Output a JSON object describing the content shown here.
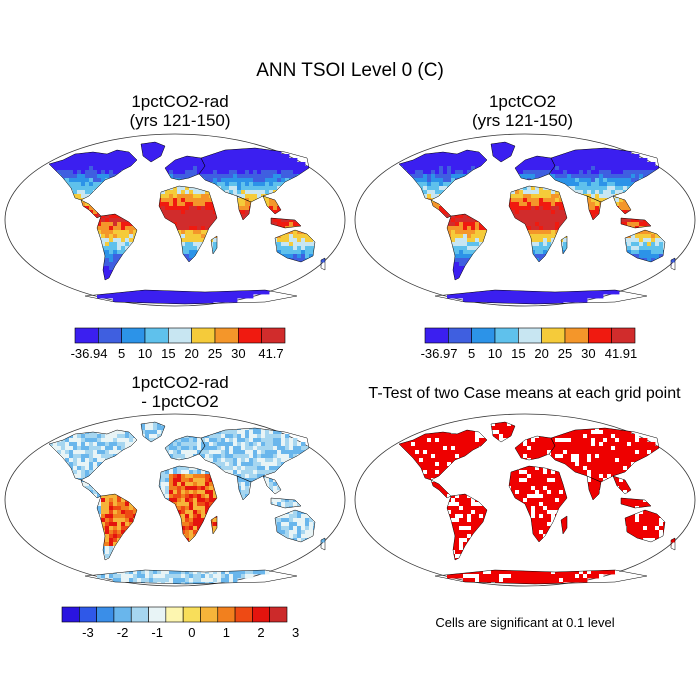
{
  "title": "ANN TSOI Level 0 (C)",
  "panels": [
    {
      "id": "p1",
      "title_line1": "1pctCO2-rad",
      "title_line2": "(yrs 121-150)",
      "colorbar": {
        "labels": [
          "-36.94",
          "5",
          "10",
          "15",
          "20",
          "25",
          "30",
          "41.7"
        ],
        "colors": [
          "#3b1ff0",
          "#3f5fe0",
          "#2c93e8",
          "#5fc1ec",
          "#c8e6f2",
          "#f5cb3a",
          "#f4962a",
          "#f01a10",
          "#d12c2c"
        ]
      }
    },
    {
      "id": "p2",
      "title_line1": "1pctCO2",
      "title_line2": "(yrs 121-150)",
      "colorbar": {
        "labels": [
          "-36.97",
          "5",
          "10",
          "15",
          "20",
          "25",
          "30",
          "41.91"
        ],
        "colors": [
          "#3b1ff0",
          "#3f5fe0",
          "#2c93e8",
          "#5fc1ec",
          "#c8e6f2",
          "#f5cb3a",
          "#f4962a",
          "#f01a10",
          "#d12c2c"
        ]
      }
    },
    {
      "id": "p3",
      "title_line1": "1pctCO2-rad",
      "title_line2": "- 1pctCO2",
      "colorbar": {
        "labels": [
          "-3",
          "-2",
          "-1",
          "0",
          "1",
          "2",
          "3"
        ],
        "colors": [
          "#2a14e0",
          "#2f58e8",
          "#3a8ee8",
          "#69b6ec",
          "#a6d6f0",
          "#e8f4f6",
          "#fdf6b0",
          "#f8de5a",
          "#f6b43a",
          "#f2801e",
          "#ee4a14",
          "#e4140e",
          "#cc2a2a"
        ]
      }
    },
    {
      "id": "p4",
      "title_line1": "T-Test of two Case means at each grid point",
      "note": "Cells are significant at 0.1 level"
    }
  ],
  "colors": {
    "significant": "#ee0000",
    "coast": "#000000"
  }
}
